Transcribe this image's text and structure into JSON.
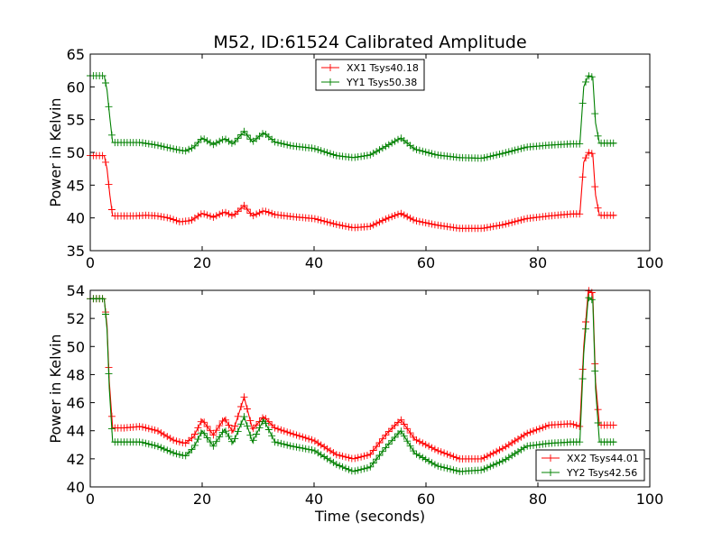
{
  "title": "M52, ID:61524 Calibrated Amplitude",
  "chart_data": [
    {
      "type": "line",
      "title": "M52, ID:61524 Calibrated Amplitude",
      "xlabel": "",
      "ylabel": "Power in Kelvin",
      "xlim": [
        0,
        100
      ],
      "ylim": [
        35,
        65
      ],
      "xticks": [
        "0",
        "20",
        "40",
        "60",
        "80",
        "100"
      ],
      "yticks": [
        "35",
        "40",
        "45",
        "50",
        "55",
        "60",
        "65"
      ],
      "legend_position": "top-center",
      "series": [
        {
          "name": "XX1 Tsys40.18",
          "color": "#ff0000",
          "marker": "plus",
          "points": [
            [
              0,
              49.5
            ],
            [
              2.5,
              49.5
            ],
            [
              3,
              47.5
            ],
            [
              3.5,
              43.5
            ],
            [
              4,
              40.3
            ],
            [
              6,
              40.3
            ],
            [
              8,
              40.3
            ],
            [
              10,
              40.4
            ],
            [
              12,
              40.3
            ],
            [
              14,
              40.0
            ],
            [
              16,
              39.4
            ],
            [
              18,
              39.6
            ],
            [
              20,
              40.7
            ],
            [
              22,
              40.1
            ],
            [
              24,
              40.9
            ],
            [
              25.5,
              40.3
            ],
            [
              27.5,
              41.9
            ],
            [
              29,
              40.3
            ],
            [
              31,
              41.1
            ],
            [
              33,
              40.5
            ],
            [
              36,
              40.2
            ],
            [
              40,
              39.9
            ],
            [
              44,
              39.0
            ],
            [
              47,
              38.5
            ],
            [
              50,
              38.7
            ],
            [
              53,
              39.9
            ],
            [
              55.5,
              40.7
            ],
            [
              58,
              39.6
            ],
            [
              62,
              38.9
            ],
            [
              66,
              38.4
            ],
            [
              70,
              38.4
            ],
            [
              74,
              39.0
            ],
            [
              78,
              39.9
            ],
            [
              82,
              40.3
            ],
            [
              86,
              40.6
            ],
            [
              87.5,
              40.6
            ],
            [
              88.2,
              48.5
            ],
            [
              89,
              50.0
            ],
            [
              89.8,
              49.8
            ],
            [
              90.3,
              43.5
            ],
            [
              91,
              40.4
            ],
            [
              94,
              40.4
            ]
          ]
        },
        {
          "name": "YY1 Tsys50.38",
          "color": "#008000",
          "marker": "plus",
          "points": [
            [
              0,
              61.7
            ],
            [
              2.5,
              61.7
            ],
            [
              3,
              59.5
            ],
            [
              3.5,
              55.3
            ],
            [
              4,
              51.5
            ],
            [
              6,
              51.5
            ],
            [
              9,
              51.5
            ],
            [
              12,
              51.1
            ],
            [
              15,
              50.5
            ],
            [
              17,
              50.2
            ],
            [
              18.5,
              50.8
            ],
            [
              20,
              52.2
            ],
            [
              22,
              51.2
            ],
            [
              24,
              52.1
            ],
            [
              25.5,
              51.3
            ],
            [
              27.5,
              53.2
            ],
            [
              29,
              51.6
            ],
            [
              31,
              53.0
            ],
            [
              33,
              51.6
            ],
            [
              36,
              51.0
            ],
            [
              40,
              50.6
            ],
            [
              44,
              49.5
            ],
            [
              47,
              49.2
            ],
            [
              50,
              49.6
            ],
            [
              53,
              51.0
            ],
            [
              55.5,
              52.2
            ],
            [
              58,
              50.5
            ],
            [
              62,
              49.6
            ],
            [
              66,
              49.2
            ],
            [
              70,
              49.1
            ],
            [
              74,
              49.9
            ],
            [
              78,
              50.8
            ],
            [
              82,
              51.1
            ],
            [
              86,
              51.3
            ],
            [
              87.5,
              51.3
            ],
            [
              88.2,
              60.0
            ],
            [
              89,
              61.7
            ],
            [
              89.8,
              61.5
            ],
            [
              90.3,
              54.5
            ],
            [
              91,
              51.4
            ],
            [
              94,
              51.4
            ]
          ]
        }
      ]
    },
    {
      "type": "line",
      "title": "",
      "xlabel": "Time (seconds)",
      "ylabel": "Power in Kelvin",
      "xlim": [
        0,
        100
      ],
      "ylim": [
        40,
        54
      ],
      "xticks": [
        "0",
        "20",
        "40",
        "60",
        "80",
        "100"
      ],
      "yticks": [
        "40",
        "42",
        "44",
        "46",
        "48",
        "50",
        "52",
        "54"
      ],
      "legend_position": "bottom-right",
      "series": [
        {
          "name": "XX2 Tsys44.01",
          "color": "#ff0000",
          "marker": "plus",
          "points": [
            [
              0,
              53.4
            ],
            [
              2.5,
              53.4
            ],
            [
              3,
              51.5
            ],
            [
              3.4,
              47.5
            ],
            [
              4,
              44.2
            ],
            [
              6,
              44.2
            ],
            [
              9,
              44.3
            ],
            [
              12,
              44.0
            ],
            [
              15,
              43.3
            ],
            [
              17,
              43.1
            ],
            [
              18.5,
              43.6
            ],
            [
              20,
              44.8
            ],
            [
              22,
              43.7
            ],
            [
              24,
              44.9
            ],
            [
              25.5,
              43.9
            ],
            [
              27.5,
              46.4
            ],
            [
              29,
              44.1
            ],
            [
              31,
              45.0
            ],
            [
              33,
              44.2
            ],
            [
              36,
              43.8
            ],
            [
              40,
              43.3
            ],
            [
              44,
              42.3
            ],
            [
              47,
              42.0
            ],
            [
              50,
              42.3
            ],
            [
              53,
              43.8
            ],
            [
              55.5,
              44.8
            ],
            [
              58,
              43.4
            ],
            [
              62,
              42.6
            ],
            [
              66,
              42.0
            ],
            [
              70,
              42.0
            ],
            [
              74,
              42.8
            ],
            [
              78,
              43.8
            ],
            [
              82,
              44.4
            ],
            [
              86,
              44.5
            ],
            [
              87.5,
              44.3
            ],
            [
              88.2,
              50.0
            ],
            [
              89,
              54.0
            ],
            [
              89.8,
              53.8
            ],
            [
              90.3,
              47.5
            ],
            [
              91,
              44.4
            ],
            [
              94,
              44.4
            ]
          ]
        },
        {
          "name": "YY2 Tsys42.56",
          "color": "#008000",
          "marker": "plus",
          "points": [
            [
              0,
              53.4
            ],
            [
              2.5,
              53.4
            ],
            [
              3,
              51.2
            ],
            [
              3.4,
              47.0
            ],
            [
              4,
              43.2
            ],
            [
              6,
              43.2
            ],
            [
              9,
              43.2
            ],
            [
              12,
              42.9
            ],
            [
              15,
              42.4
            ],
            [
              17,
              42.2
            ],
            [
              18.5,
              42.8
            ],
            [
              20,
              44.0
            ],
            [
              22,
              42.9
            ],
            [
              24,
              44.1
            ],
            [
              25.5,
              43.1
            ],
            [
              27.5,
              45.0
            ],
            [
              29,
              43.2
            ],
            [
              31,
              44.8
            ],
            [
              33,
              43.2
            ],
            [
              36,
              42.9
            ],
            [
              40,
              42.6
            ],
            [
              44,
              41.6
            ],
            [
              47,
              41.1
            ],
            [
              50,
              41.4
            ],
            [
              53,
              42.9
            ],
            [
              55.5,
              44.0
            ],
            [
              58,
              42.4
            ],
            [
              62,
              41.5
            ],
            [
              66,
              41.1
            ],
            [
              70,
              41.2
            ],
            [
              74,
              41.9
            ],
            [
              78,
              42.9
            ],
            [
              82,
              43.1
            ],
            [
              86,
              43.2
            ],
            [
              87.5,
              43.2
            ],
            [
              88.2,
              49.5
            ],
            [
              89,
              53.5
            ],
            [
              89.8,
              53.3
            ],
            [
              90.3,
              47.0
            ],
            [
              91,
              43.2
            ],
            [
              94,
              43.2
            ]
          ]
        }
      ]
    }
  ]
}
